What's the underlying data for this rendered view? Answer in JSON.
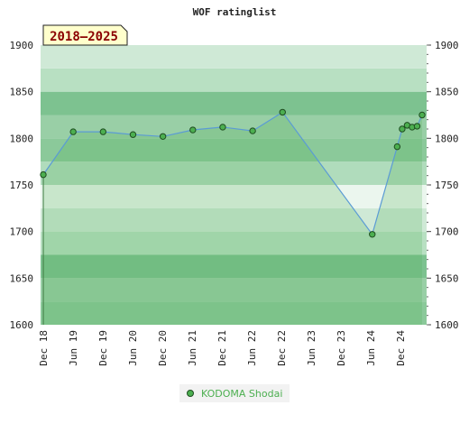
{
  "chart_data": {
    "type": "line",
    "title": "WOF ratinglist",
    "badge": "2018–2025",
    "xlabel": "",
    "ylabel": "",
    "ylim": [
      1600,
      1900
    ],
    "yticks": [
      1600,
      1650,
      1700,
      1750,
      1800,
      1850,
      1900
    ],
    "xticks": [
      "Dec 18",
      "Jun 19",
      "Dec 19",
      "Jun 20",
      "Dec 20",
      "Jun 21",
      "Dec 21",
      "Jun 22",
      "Dec 22",
      "Jun 23",
      "Dec 23",
      "Jun 24",
      "Dec 24"
    ],
    "grid": true,
    "legend_position": "bottom-center",
    "series": [
      {
        "name": "KODOMA Shodai",
        "color": "#4caf50",
        "points": [
          {
            "x": "2018-12",
            "y": 1761
          },
          {
            "x": "2019-06",
            "y": 1807
          },
          {
            "x": "2019-12",
            "y": 1807
          },
          {
            "x": "2020-06",
            "y": 1804
          },
          {
            "x": "2020-12",
            "y": 1802
          },
          {
            "x": "2021-06",
            "y": 1809
          },
          {
            "x": "2021-12",
            "y": 1812
          },
          {
            "x": "2022-06",
            "y": 1808
          },
          {
            "x": "2022-12",
            "y": 1828
          },
          {
            "x": "2024-06",
            "y": 1697
          },
          {
            "x": "2024-11",
            "y": 1791
          },
          {
            "x": "2024-12",
            "y": 1810
          },
          {
            "x": "2025-01",
            "y": 1814
          },
          {
            "x": "2025-02",
            "y": 1812
          },
          {
            "x": "2025-03",
            "y": 1813
          },
          {
            "x": "2025-04",
            "y": 1825
          }
        ]
      }
    ]
  }
}
